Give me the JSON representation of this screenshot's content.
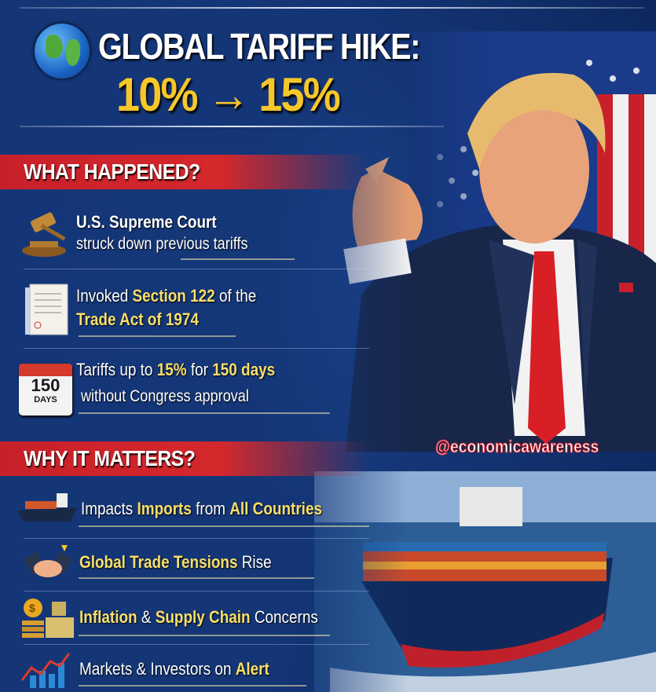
{
  "header": {
    "title": "GLOBAL TARIFF HIKE:",
    "rate_change": "10% → 15%"
  },
  "section1": {
    "heading": "WHAT HAPPENED?",
    "items": [
      {
        "icon": "gavel-icon",
        "line1": "U.S. Supreme Court",
        "line2": "struck down previous tariffs"
      },
      {
        "icon": "document-icon",
        "l1a": "Invoked ",
        "l1b": "Section 122",
        "l1c": " of the",
        "line2": "Trade Act of 1974"
      },
      {
        "icon": "calendar-icon",
        "calendar_number": "150",
        "calendar_label": "DAYS",
        "l1a": "Tariffs up to ",
        "l1b": "15%",
        "l1c": " for ",
        "l1d": "150 days",
        "line2": "without Congress approval"
      }
    ]
  },
  "section2": {
    "heading": "WHY IT MATTERS?",
    "items": [
      {
        "icon": "cargo-ship-icon",
        "a": "Impacts ",
        "b": "Imports",
        "c": " from ",
        "d": "All Countries"
      },
      {
        "icon": "handshake-icon",
        "a": "Global Trade Tensions",
        "b": " Rise"
      },
      {
        "icon": "money-supply-icon",
        "a": "Inflation",
        "b": " & ",
        "c": "Supply Chain",
        "d": " Concerns"
      },
      {
        "icon": "rising-chart-icon",
        "a": "Markets & Investors on ",
        "b": "Alert"
      }
    ]
  },
  "watermark": "@economicawareness",
  "colors": {
    "background": "#143677",
    "banner_red": "#d4282c",
    "highlight_yellow": "#f7df6a",
    "title_yellow": "#f7c72a"
  }
}
